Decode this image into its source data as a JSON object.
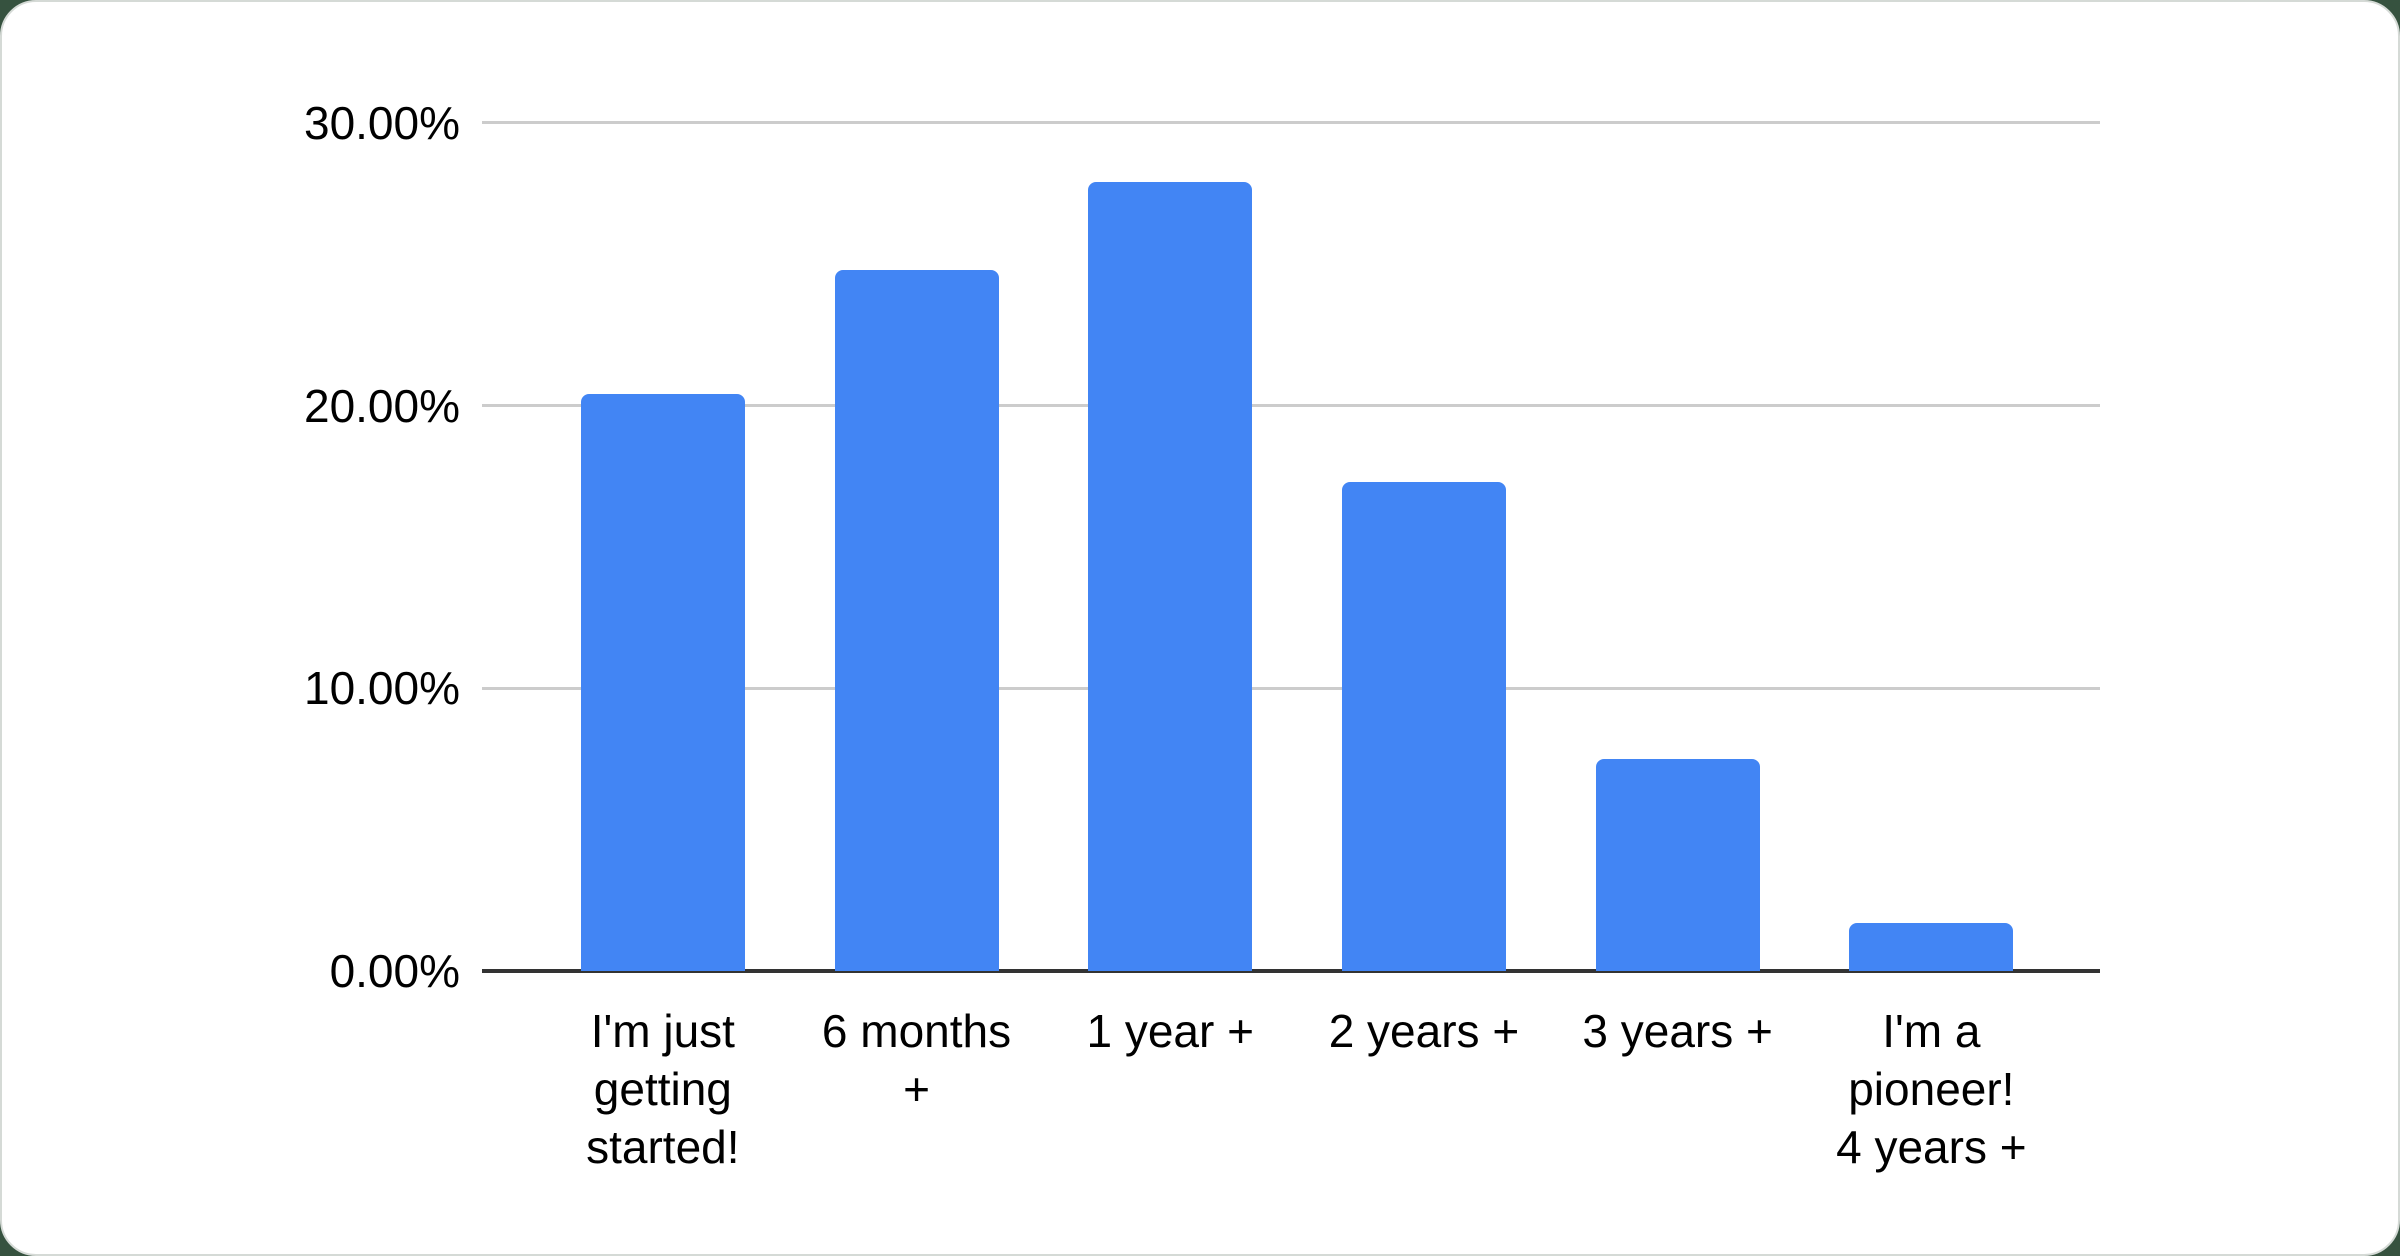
{
  "page": {
    "background_color": "#36523f",
    "card_color": "#ffffff",
    "card_edge_color": "#d5dad6"
  },
  "chart_data": {
    "type": "bar",
    "title": "",
    "xlabel": "",
    "ylabel": "",
    "categories": [
      "I'm just getting started!",
      "6 months +",
      "1 year +",
      "2 years +",
      "3 years +",
      "I'm a pioneer! 4 years +"
    ],
    "category_lines": [
      [
        "I'm just",
        "getting",
        "started!"
      ],
      [
        "6 months",
        "+"
      ],
      [
        "1 year +"
      ],
      [
        "2 years +"
      ],
      [
        "3 years +"
      ],
      [
        "I'm a",
        "pioneer!",
        "4 years +"
      ]
    ],
    "values": [
      20.4,
      24.8,
      27.9,
      17.3,
      7.5,
      1.7
    ],
    "value_unit": "%",
    "ylim": [
      0,
      30
    ],
    "y_tick_values": [
      0,
      10,
      20,
      30
    ],
    "y_tick_labels": [
      "0.00%",
      "10.00%",
      "20.00%",
      "30.00%"
    ],
    "grid": true,
    "legend": "none",
    "bar_color": "#4285F4",
    "gridline_color": "#cccccc",
    "axis_line_color": "#333333",
    "label_color": "#000000"
  }
}
